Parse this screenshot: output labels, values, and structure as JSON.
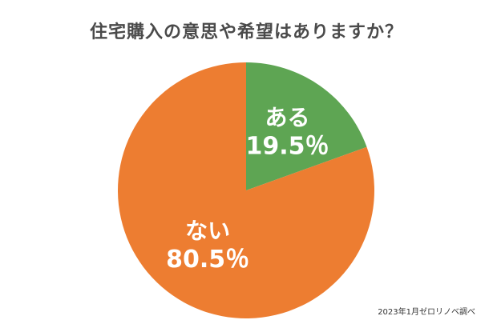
{
  "chart_data": {
    "type": "pie",
    "title": "住宅購入の意思や希望はありますか？",
    "slices": [
      {
        "label": "ある",
        "percent_text": "19.5％",
        "value": 19.5,
        "color": "#5ea553"
      },
      {
        "label": "ない",
        "percent_text": "80.5％",
        "value": 80.5,
        "color": "#ed7d31"
      }
    ],
    "start_angle_deg": 0,
    "direction": "clockwise"
  },
  "source_note": "2023年1月ゼロリノベ調べ"
}
